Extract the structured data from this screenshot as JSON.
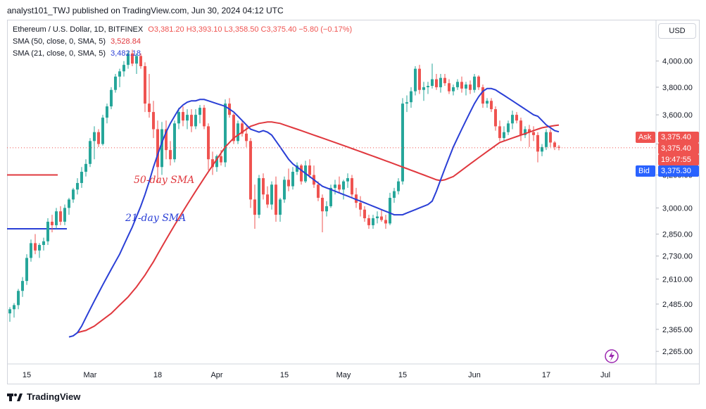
{
  "header": {
    "publish_line": "analyst101_TWJ published on TradingView.com, Jun 30, 2024 04:12 UTC"
  },
  "legend": {
    "symbol": "Ethereum / U.S. Dollar, 1D, BITFINEX",
    "ohlc": "O3,381.20 H3,393.10 L3,358.50 C3,375.40 −5.80 (−0.17%)",
    "sma50_label": "SMA (50, close, 0, SMA, 5)",
    "sma50_value": "3,528.84",
    "sma21_label": "SMA (21, close, 0, SMA, 5)",
    "sma21_value": "3,482.18"
  },
  "currency_button": "USD",
  "annotations": {
    "sma50_text": "50-day SMA",
    "sma21_text": "21-day SMA"
  },
  "price_labels": {
    "ask_tag": "Ask",
    "ask_price": "3,375.40",
    "last_price": "3,375.40",
    "countdown": "19:47:55",
    "bid_tag": "Bid",
    "bid_price": "3,375.30"
  },
  "footer": {
    "brand": "TradingView"
  },
  "colors": {
    "up": "#26a69a",
    "down": "#ef5350",
    "sma50": "#e0383e",
    "sma21": "#2a3fd6",
    "ask": "#ef5350",
    "bid": "#2962ff"
  },
  "chart_data": {
    "type": "candlestick",
    "y_axis": {
      "scale": "log",
      "ticks": [
        2265,
        2365,
        2485,
        2610,
        2730,
        2850,
        3000,
        3200,
        3400,
        3600,
        3800,
        4000
      ],
      "tick_labels": [
        "2,265.00",
        "2,365.00",
        "2,485.00",
        "2,610.00",
        "2,730.00",
        "2,850.00",
        "3,000.00",
        "3,200.00",
        "3,400.00",
        "3,600.00",
        "3,800.00",
        "4,000.00"
      ],
      "range": [
        2210,
        4150
      ]
    },
    "x_axis": {
      "tick_labels": [
        "15",
        "Mar",
        "18",
        "Apr",
        "15",
        "May",
        "15",
        "Jun",
        "17",
        "Jul"
      ],
      "tick_index": [
        4,
        19,
        35,
        49,
        65,
        79,
        93,
        110,
        127,
        141
      ]
    },
    "candles": [
      [
        2440,
        2470,
        2400,
        2460
      ],
      [
        2460,
        2490,
        2420,
        2480
      ],
      [
        2480,
        2560,
        2460,
        2550
      ],
      [
        2550,
        2620,
        2520,
        2600
      ],
      [
        2600,
        2740,
        2580,
        2720
      ],
      [
        2720,
        2820,
        2700,
        2800
      ],
      [
        2800,
        2850,
        2740,
        2760
      ],
      [
        2760,
        2800,
        2720,
        2790
      ],
      [
        2790,
        2830,
        2760,
        2810
      ],
      [
        2810,
        2940,
        2790,
        2920
      ],
      [
        2920,
        2960,
        2860,
        2900
      ],
      [
        2900,
        3000,
        2880,
        2980
      ],
      [
        2980,
        3010,
        2900,
        2920
      ],
      [
        2920,
        3020,
        2900,
        3000
      ],
      [
        3000,
        3060,
        2960,
        3050
      ],
      [
        3050,
        3120,
        3030,
        3110
      ],
      [
        3110,
        3180,
        3080,
        3150
      ],
      [
        3150,
        3250,
        3120,
        3220
      ],
      [
        3220,
        3300,
        3190,
        3270
      ],
      [
        3270,
        3440,
        3250,
        3420
      ],
      [
        3420,
        3520,
        3300,
        3480
      ],
      [
        3480,
        3500,
        3380,
        3400
      ],
      [
        3400,
        3600,
        3390,
        3580
      ],
      [
        3580,
        3680,
        3540,
        3660
      ],
      [
        3660,
        3800,
        3640,
        3780
      ],
      [
        3780,
        3900,
        3760,
        3880
      ],
      [
        3880,
        3940,
        3800,
        3920
      ],
      [
        3920,
        4000,
        3880,
        3970
      ],
      [
        3970,
        4080,
        3940,
        4060
      ],
      [
        4060,
        4090,
        3960,
        3980
      ],
      [
        3980,
        4060,
        3900,
        4040
      ],
      [
        4040,
        4060,
        3940,
        3960
      ],
      [
        3960,
        3990,
        3620,
        3680
      ],
      [
        3680,
        3900,
        3580,
        3620
      ],
      [
        3620,
        3700,
        3440,
        3500
      ],
      [
        3500,
        3560,
        3150,
        3250
      ],
      [
        3250,
        3550,
        3200,
        3500
      ],
      [
        3500,
        3560,
        3300,
        3360
      ],
      [
        3360,
        3420,
        3260,
        3300
      ],
      [
        3300,
        3560,
        3280,
        3540
      ],
      [
        3540,
        3650,
        3500,
        3620
      ],
      [
        3620,
        3660,
        3520,
        3560
      ],
      [
        3560,
        3640,
        3500,
        3600
      ],
      [
        3600,
        3640,
        3480,
        3520
      ],
      [
        3520,
        3640,
        3500,
        3600
      ],
      [
        3600,
        3670,
        3540,
        3650
      ],
      [
        3650,
        3670,
        3500,
        3520
      ],
      [
        3520,
        3540,
        3230,
        3300
      ],
      [
        3300,
        3350,
        3200,
        3250
      ],
      [
        3250,
        3330,
        3220,
        3320
      ],
      [
        3320,
        3360,
        3260,
        3280
      ],
      [
        3280,
        3710,
        3250,
        3680
      ],
      [
        3680,
        3720,
        3580,
        3600
      ],
      [
        3600,
        3610,
        3400,
        3420
      ],
      [
        3420,
        3560,
        3400,
        3540
      ],
      [
        3540,
        3560,
        3450,
        3470
      ],
      [
        3470,
        3520,
        3380,
        3420
      ],
      [
        3420,
        3440,
        3000,
        3050
      ],
      [
        3050,
        3140,
        2880,
        2960
      ],
      [
        2960,
        3200,
        2940,
        3180
      ],
      [
        3180,
        3210,
        3050,
        3080
      ],
      [
        3080,
        3130,
        3000,
        3020
      ],
      [
        3020,
        3160,
        2990,
        3140
      ],
      [
        3140,
        3190,
        2920,
        2960
      ],
      [
        2960,
        3060,
        2920,
        3050
      ],
      [
        3050,
        3190,
        3030,
        3170
      ],
      [
        3170,
        3240,
        3100,
        3130
      ],
      [
        3130,
        3250,
        3110,
        3220
      ],
      [
        3220,
        3280,
        3200,
        3260
      ],
      [
        3260,
        3270,
        3140,
        3160
      ],
      [
        3160,
        3290,
        3150,
        3260
      ],
      [
        3260,
        3300,
        3180,
        3200
      ],
      [
        3200,
        3260,
        3120,
        3140
      ],
      [
        3140,
        3160,
        3040,
        3060
      ],
      [
        3060,
        3080,
        2860,
        2980
      ],
      [
        2980,
        3040,
        2950,
        3010
      ],
      [
        3010,
        3140,
        3000,
        3120
      ],
      [
        3120,
        3170,
        3080,
        3140
      ],
      [
        3140,
        3190,
        3090,
        3110
      ],
      [
        3110,
        3170,
        3050,
        3160
      ],
      [
        3160,
        3210,
        3120,
        3180
      ],
      [
        3180,
        3200,
        3060,
        3080
      ],
      [
        3080,
        3120,
        3000,
        3030
      ],
      [
        3030,
        3070,
        2950,
        2990
      ],
      [
        2990,
        3010,
        2920,
        2940
      ],
      [
        2940,
        2960,
        2880,
        2900
      ],
      [
        2900,
        2960,
        2880,
        2940
      ],
      [
        2940,
        2980,
        2910,
        2950
      ],
      [
        2950,
        2990,
        2920,
        2930
      ],
      [
        2930,
        2960,
        2880,
        2910
      ],
      [
        2910,
        3090,
        2900,
        3060
      ],
      [
        3060,
        3120,
        3030,
        3100
      ],
      [
        3100,
        3180,
        3080,
        3160
      ],
      [
        3160,
        3720,
        3140,
        3680
      ],
      [
        3680,
        3740,
        3620,
        3690
      ],
      [
        3690,
        3800,
        3650,
        3770
      ],
      [
        3770,
        3960,
        3740,
        3940
      ],
      [
        3940,
        3970,
        3750,
        3780
      ],
      [
        3780,
        3840,
        3700,
        3800
      ],
      [
        3800,
        3840,
        3750,
        3810
      ],
      [
        3810,
        3980,
        3790,
        3860
      ],
      [
        3860,
        3900,
        3780,
        3800
      ],
      [
        3800,
        3900,
        3760,
        3870
      ],
      [
        3870,
        3900,
        3810,
        3830
      ],
      [
        3830,
        3860,
        3750,
        3770
      ],
      [
        3770,
        3820,
        3740,
        3800
      ],
      [
        3800,
        3860,
        3780,
        3840
      ],
      [
        3840,
        3880,
        3760,
        3790
      ],
      [
        3790,
        3840,
        3740,
        3820
      ],
      [
        3820,
        3850,
        3750,
        3780
      ],
      [
        3780,
        3900,
        3760,
        3880
      ],
      [
        3880,
        3890,
        3780,
        3800
      ],
      [
        3800,
        3820,
        3650,
        3680
      ],
      [
        3680,
        3720,
        3650,
        3700
      ],
      [
        3700,
        3720,
        3620,
        3640
      ],
      [
        3640,
        3660,
        3490,
        3520
      ],
      [
        3520,
        3560,
        3420,
        3440
      ],
      [
        3440,
        3520,
        3420,
        3480
      ],
      [
        3480,
        3560,
        3460,
        3540
      ],
      [
        3540,
        3630,
        3500,
        3600
      ],
      [
        3600,
        3620,
        3540,
        3560
      ],
      [
        3560,
        3580,
        3420,
        3460
      ],
      [
        3460,
        3520,
        3440,
        3500
      ],
      [
        3500,
        3530,
        3380,
        3480
      ],
      [
        3480,
        3520,
        3420,
        3460
      ],
      [
        3460,
        3480,
        3280,
        3350
      ],
      [
        3350,
        3400,
        3320,
        3380
      ],
      [
        3380,
        3500,
        3360,
        3480
      ],
      [
        3480,
        3500,
        3380,
        3410
      ],
      [
        3410,
        3420,
        3360,
        3380
      ],
      [
        3381.2,
        3393.1,
        3358.5,
        3375.4
      ]
    ],
    "sma21": [
      2330,
      2335,
      2350,
      2380,
      2420,
      2460,
      2500,
      2540,
      2580,
      2620,
      2660,
      2700,
      2740,
      2790,
      2840,
      2890,
      2950,
      3010,
      3080,
      3160,
      3250,
      3330,
      3410,
      3480,
      3540,
      3590,
      3640,
      3670,
      3690,
      3700,
      3700,
      3710,
      3710,
      3700,
      3690,
      3680,
      3670,
      3660,
      3640,
      3620,
      3590,
      3560,
      3530,
      3500,
      3490,
      3480,
      3490,
      3480,
      3460,
      3420,
      3380,
      3340,
      3300,
      3270,
      3250,
      3230,
      3210,
      3190,
      3170,
      3150,
      3130,
      3120,
      3110,
      3100,
      3090,
      3080,
      3070,
      3060,
      3050,
      3040,
      3030,
      3020,
      3010,
      3000,
      2990,
      2980,
      2970,
      2960,
      2960,
      2960,
      2970,
      2980,
      2990,
      3000,
      3010,
      3020,
      3040,
      3100,
      3170,
      3240,
      3310,
      3380,
      3440,
      3500,
      3560,
      3620,
      3680,
      3730,
      3770,
      3790,
      3790,
      3780,
      3760,
      3740,
      3720,
      3700,
      3680,
      3660,
      3640,
      3620,
      3600,
      3590,
      3560,
      3530,
      3510,
      3490,
      3482.18
    ],
    "sma50": [
      2350,
      2355,
      2360,
      2370,
      2380,
      2395,
      2410,
      2425,
      2440,
      2460,
      2480,
      2500,
      2520,
      2545,
      2570,
      2600,
      2630,
      2665,
      2700,
      2740,
      2780,
      2820,
      2860,
      2900,
      2940,
      2980,
      3020,
      3060,
      3100,
      3140,
      3180,
      3220,
      3260,
      3300,
      3340,
      3380,
      3410,
      3440,
      3460,
      3480,
      3500,
      3520,
      3530,
      3540,
      3545,
      3550,
      3550,
      3545,
      3540,
      3530,
      3520,
      3510,
      3500,
      3490,
      3480,
      3470,
      3460,
      3450,
      3440,
      3430,
      3420,
      3410,
      3400,
      3390,
      3380,
      3370,
      3360,
      3350,
      3340,
      3330,
      3320,
      3310,
      3300,
      3290,
      3280,
      3270,
      3260,
      3250,
      3240,
      3230,
      3220,
      3210,
      3200,
      3190,
      3180,
      3170,
      3165,
      3170,
      3180,
      3190,
      3210,
      3230,
      3250,
      3270,
      3290,
      3310,
      3330,
      3350,
      3370,
      3390,
      3410,
      3420,
      3430,
      3440,
      3450,
      3460,
      3470,
      3480,
      3490,
      3500,
      3510,
      3515,
      3520,
      3525,
      3528.84
    ],
    "prior_sma50_level": 3200,
    "prior_sma21_level": 2880,
    "current_price": 3375.4
  }
}
